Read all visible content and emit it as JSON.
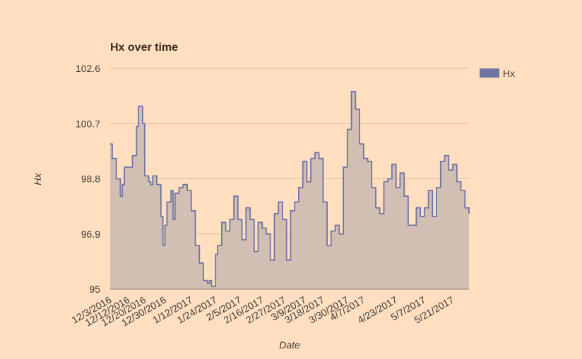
{
  "chart_data": {
    "type": "area",
    "title": "Hx over time",
    "xlabel": "Date",
    "ylabel": "Hx",
    "ylim": [
      95,
      102.6
    ],
    "yticks": [
      "95",
      "96.9",
      "98.8",
      "100.7",
      "102.6"
    ],
    "xticks": [
      "12/3/2016",
      "12/12/2016",
      "12/20/2016",
      "12/30/2016",
      "1/12/2017",
      "1/24/2017",
      "2/5/2017",
      "2/16/2017",
      "2/27/2017",
      "3/9/2017",
      "3/18/2017",
      "3/30/2017",
      "4/7/2017",
      "4/23/2017",
      "5/7/2017",
      "5/21/2017"
    ],
    "grid": true,
    "legend_position": "right",
    "colors": {
      "line": "#6f75a3",
      "fill": "#d2bfb4",
      "background": "#ffdfbf",
      "grid": "#d6b99d",
      "baseline": "#8b7f7a"
    },
    "series": [
      {
        "name": "Hx",
        "x": [
          "2016-12-03",
          "2016-12-04",
          "2016-12-06",
          "2016-12-08",
          "2016-12-09",
          "2016-12-10",
          "2016-12-12",
          "2016-12-14",
          "2016-12-16",
          "2016-12-17",
          "2016-12-18",
          "2016-12-19",
          "2016-12-20",
          "2016-12-22",
          "2016-12-23",
          "2016-12-24",
          "2016-12-26",
          "2016-12-28",
          "2016-12-29",
          "2016-12-30",
          "2016-12-31",
          "2017-01-02",
          "2017-01-03",
          "2017-01-04",
          "2017-01-06",
          "2017-01-08",
          "2017-01-10",
          "2017-01-12",
          "2017-01-14",
          "2017-01-16",
          "2017-01-18",
          "2017-01-20",
          "2017-01-21",
          "2017-01-22",
          "2017-01-24",
          "2017-01-25",
          "2017-01-27",
          "2017-01-29",
          "2017-01-31",
          "2017-02-02",
          "2017-02-04",
          "2017-02-06",
          "2017-02-08",
          "2017-02-10",
          "2017-02-12",
          "2017-02-14",
          "2017-02-16",
          "2017-02-18",
          "2017-02-20",
          "2017-02-22",
          "2017-02-24",
          "2017-02-26",
          "2017-02-28",
          "2017-03-02",
          "2017-03-04",
          "2017-03-06",
          "2017-03-08",
          "2017-03-10",
          "2017-03-12",
          "2017-03-14",
          "2017-03-16",
          "2017-03-18",
          "2017-03-20",
          "2017-03-22",
          "2017-03-24",
          "2017-03-26",
          "2017-03-28",
          "2017-03-30",
          "2017-04-01",
          "2017-04-03",
          "2017-04-05",
          "2017-04-07",
          "2017-04-09",
          "2017-04-11",
          "2017-04-13",
          "2017-04-15",
          "2017-04-17",
          "2017-04-19",
          "2017-04-21",
          "2017-04-23",
          "2017-04-25",
          "2017-04-27",
          "2017-04-29",
          "2017-05-01",
          "2017-05-03",
          "2017-05-05",
          "2017-05-07",
          "2017-05-09",
          "2017-05-11",
          "2017-05-13",
          "2017-05-15",
          "2017-05-17",
          "2017-05-19",
          "2017-05-21",
          "2017-05-23",
          "2017-05-25",
          "2017-05-27",
          "2017-05-29"
        ],
        "values": [
          100.0,
          99.5,
          98.8,
          98.2,
          98.6,
          99.2,
          99.2,
          99.6,
          100.6,
          101.3,
          101.3,
          100.7,
          98.9,
          98.7,
          98.6,
          98.9,
          98.6,
          97.5,
          96.5,
          97.2,
          98.0,
          98.4,
          97.4,
          98.3,
          98.5,
          98.6,
          98.4,
          97.7,
          96.5,
          95.9,
          95.3,
          95.2,
          95.3,
          95.1,
          96.2,
          96.5,
          97.3,
          97.0,
          97.4,
          98.2,
          97.4,
          96.7,
          97.8,
          97.4,
          96.3,
          97.3,
          97.1,
          96.9,
          96.0,
          97.6,
          98.0,
          97.4,
          96.0,
          97.7,
          98.0,
          98.5,
          99.4,
          98.7,
          99.5,
          99.7,
          99.5,
          98.0,
          96.5,
          97.0,
          97.2,
          96.9,
          99.2,
          100.5,
          101.8,
          101.2,
          100.0,
          99.5,
          99.4,
          98.5,
          97.8,
          97.6,
          98.7,
          98.8,
          99.3,
          98.5,
          99.0,
          98.2,
          97.2,
          97.2,
          97.8,
          97.5,
          97.8,
          98.4,
          97.5,
          98.5,
          99.4,
          99.6,
          99.1,
          99.3,
          98.7,
          98.4,
          97.8,
          97.6
        ]
      }
    ]
  }
}
